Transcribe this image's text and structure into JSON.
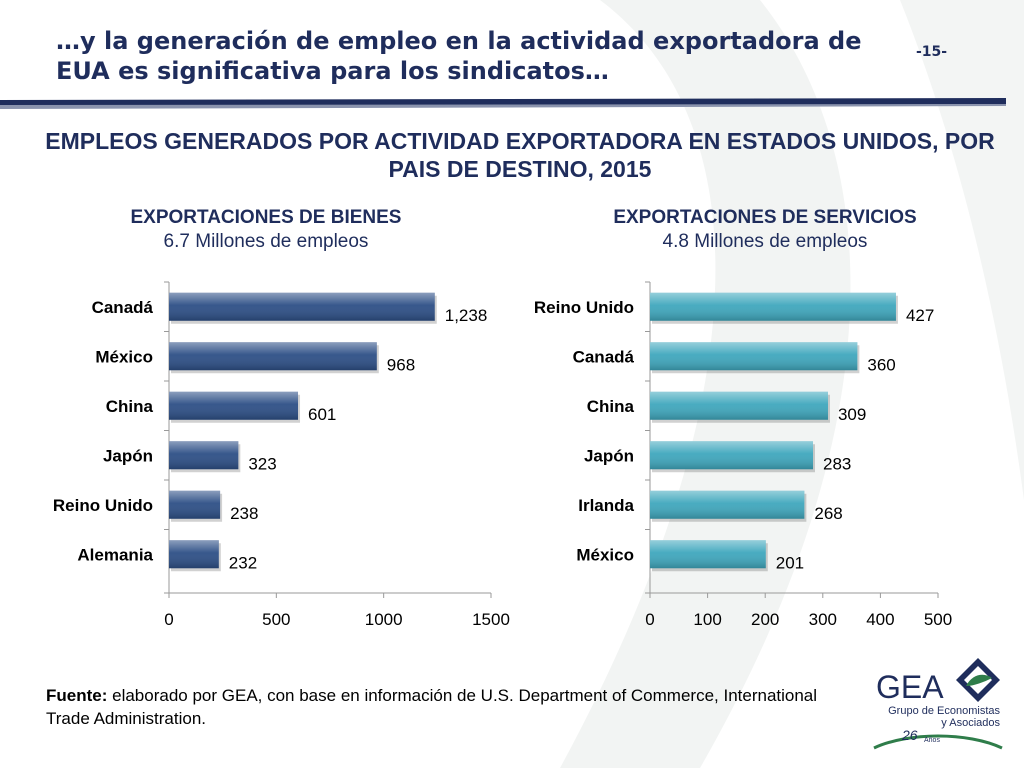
{
  "header": {
    "title": "…y la generación de empleo en la actividad exportadora de EUA es significativa para los sindicatos…",
    "page_number": "-15-"
  },
  "main_heading": "EMPLEOS GENERADOS POR ACTIVIDAD EXPORTADORA EN ESTADOS UNIDOS, POR PAIS DE DESTINO, 2015",
  "colors": {
    "title": "#1f2d5c",
    "bienes_bar": "#2d4f86",
    "servicios_bar": "#3fa7bd",
    "rule": "#1f2d5c"
  },
  "chart_data": [
    {
      "type": "bar",
      "orientation": "horizontal",
      "title": "EXPORTACIONES DE BIENES",
      "subtitle": "6.7 Millones de empleos",
      "categories": [
        "Canadá",
        "México",
        "China",
        "Japón",
        "Reino Unido",
        "Alemania"
      ],
      "values": [
        1238,
        968,
        601,
        323,
        238,
        232
      ],
      "value_labels": [
        "1,238",
        "968",
        "601",
        "323",
        "238",
        "232"
      ],
      "xlim": [
        0,
        1500
      ],
      "xticks": [
        0,
        500,
        1000,
        1500
      ],
      "xtick_labels": [
        "0",
        "500",
        "1000",
        "1500"
      ],
      "grid": false,
      "color": "#2d4f86"
    },
    {
      "type": "bar",
      "orientation": "horizontal",
      "title": "EXPORTACIONES DE SERVICIOS",
      "subtitle": "4.8 Millones de empleos",
      "categories": [
        "Reino Unido",
        "Canadá",
        "China",
        "Japón",
        "Irlanda",
        "México"
      ],
      "values": [
        427,
        360,
        309,
        283,
        268,
        201
      ],
      "value_labels": [
        "427",
        "360",
        "309",
        "283",
        "268",
        "201"
      ],
      "xlim": [
        0,
        500
      ],
      "xticks": [
        0,
        100,
        200,
        300,
        400,
        500
      ],
      "xtick_labels": [
        "0",
        "100",
        "200",
        "300",
        "400",
        "500"
      ],
      "grid": false,
      "color": "#3fa7bd"
    }
  ],
  "source": {
    "label": "Fuente:",
    "text": " elaborado por GEA, con base en información de U.S. Department of Commerce, International Trade Administration."
  },
  "logo": {
    "name": "GEA",
    "line1": "Grupo de Economistas",
    "line2": "y Asociados",
    "years": "26",
    "years_label": "Años"
  }
}
